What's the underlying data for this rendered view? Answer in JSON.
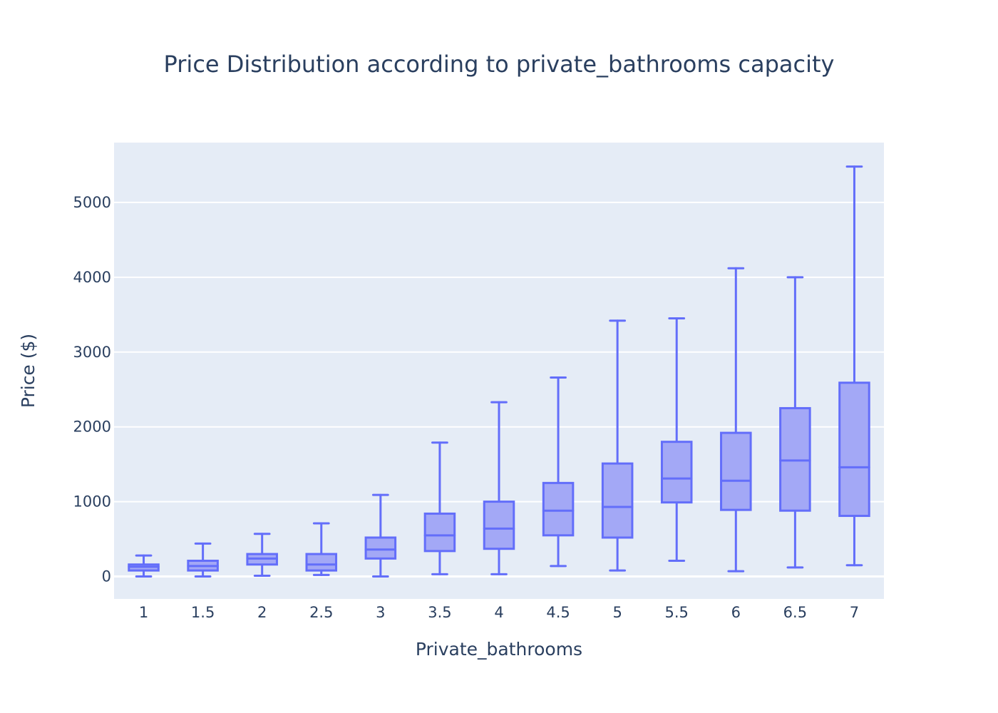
{
  "chart_data": {
    "type": "box",
    "title": "Price Distribution according to private_bathrooms capacity",
    "xlabel": "Private_bathrooms",
    "ylabel": "Price ($)",
    "ylim": [
      -300,
      5800
    ],
    "yticks": [
      0,
      1000,
      2000,
      3000,
      4000,
      5000
    ],
    "grid": true,
    "colors": {
      "line": "#636efa",
      "fill": "#a3a8f6",
      "plot_bg": "#e5ecf6",
      "text": "#2a3f5f"
    },
    "categories": [
      "1",
      "1.5",
      "2",
      "2.5",
      "3",
      "3.5",
      "4",
      "4.5",
      "5",
      "5.5",
      "6",
      "6.5",
      "7"
    ],
    "boxes": [
      {
        "min": 0,
        "q1": 80,
        "median": 130,
        "q3": 160,
        "max": 280
      },
      {
        "min": 0,
        "q1": 80,
        "median": 140,
        "q3": 210,
        "max": 440
      },
      {
        "min": 10,
        "q1": 160,
        "median": 240,
        "q3": 300,
        "max": 570
      },
      {
        "min": 20,
        "q1": 80,
        "median": 160,
        "q3": 300,
        "max": 710
      },
      {
        "min": 0,
        "q1": 240,
        "median": 360,
        "q3": 520,
        "max": 1090
      },
      {
        "min": 30,
        "q1": 340,
        "median": 550,
        "q3": 840,
        "max": 1790
      },
      {
        "min": 30,
        "q1": 370,
        "median": 640,
        "q3": 1000,
        "max": 2330
      },
      {
        "min": 140,
        "q1": 550,
        "median": 880,
        "q3": 1250,
        "max": 2660
      },
      {
        "min": 80,
        "q1": 520,
        "median": 930,
        "q3": 1510,
        "max": 3420
      },
      {
        "min": 210,
        "q1": 990,
        "median": 1310,
        "q3": 1800,
        "max": 3450
      },
      {
        "min": 70,
        "q1": 890,
        "median": 1280,
        "q3": 1920,
        "max": 4120
      },
      {
        "min": 120,
        "q1": 880,
        "median": 1550,
        "q3": 2250,
        "max": 4000
      },
      {
        "min": 150,
        "q1": 810,
        "median": 1460,
        "q3": 2590,
        "max": 5480
      }
    ]
  }
}
